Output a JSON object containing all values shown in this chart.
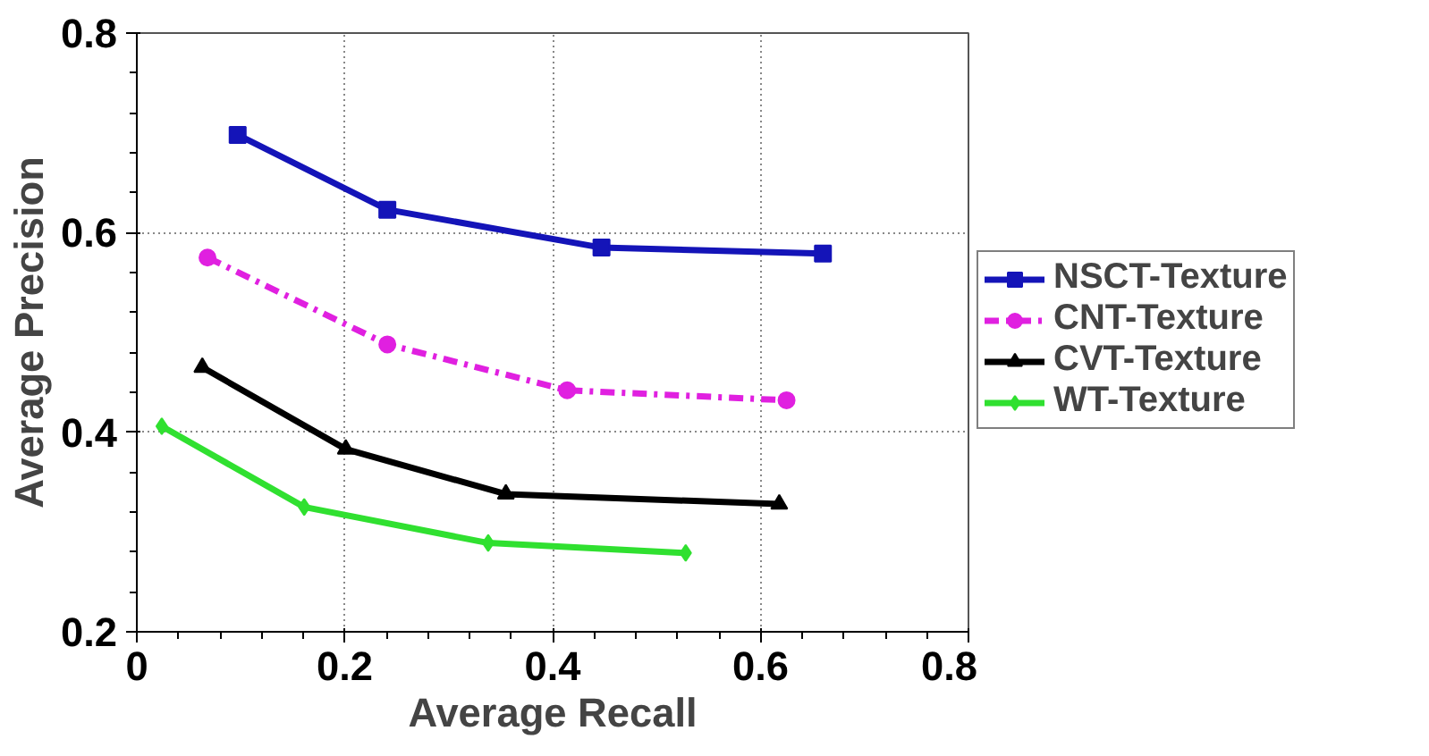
{
  "chart_data": {
    "type": "line",
    "xlabel": "Average Recall",
    "ylabel": "Average Precision",
    "xlim": [
      0,
      0.8
    ],
    "ylim": [
      0.2,
      0.8
    ],
    "xticks": [
      0,
      0.2,
      0.4,
      0.6,
      0.8
    ],
    "yticks": [
      0.2,
      0.4,
      0.6,
      0.8
    ],
    "grid": true,
    "legend": "right",
    "series": [
      {
        "name": "NSCT-Texture",
        "color": "#1414b8",
        "marker": "square",
        "line_style": "solid",
        "x": [
          0.097,
          0.241,
          0.447,
          0.66
        ],
        "values": [
          0.698,
          0.623,
          0.585,
          0.579
        ]
      },
      {
        "name": "CNT-Texture",
        "color": "#e020e0",
        "marker": "circle",
        "line_style": "dashdot",
        "x": [
          0.068,
          0.241,
          0.414,
          0.625
        ],
        "values": [
          0.575,
          0.488,
          0.442,
          0.432
        ]
      },
      {
        "name": "CVT-Texture",
        "color": "#000000",
        "marker": "triangle",
        "line_style": "solid",
        "x": [
          0.063,
          0.201,
          0.355,
          0.618
        ],
        "values": [
          0.465,
          0.383,
          0.338,
          0.328
        ]
      },
      {
        "name": "WT-Texture",
        "color": "#30e030",
        "marker": "diamond",
        "line_style": "solid",
        "x": [
          0.024,
          0.161,
          0.338,
          0.528
        ],
        "values": [
          0.406,
          0.325,
          0.289,
          0.279
        ]
      }
    ]
  }
}
